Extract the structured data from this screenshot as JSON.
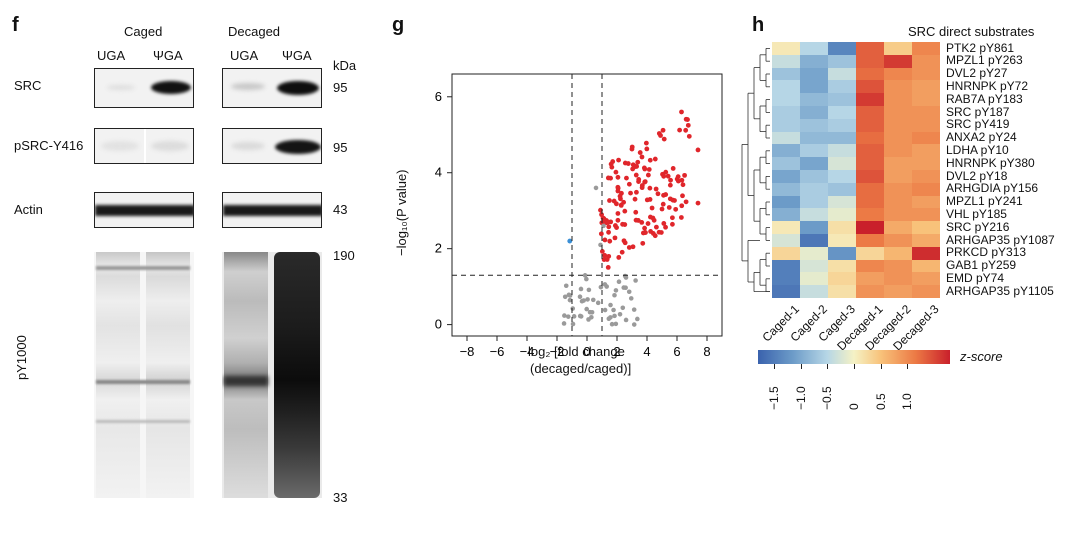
{
  "panel_f": {
    "label": "f",
    "group_left": "Caged",
    "group_right": "Decaged",
    "lane_labels": [
      "UGA",
      "ΨGA",
      "UGA",
      "ΨGA"
    ],
    "kda_header": "kDa",
    "rows": [
      {
        "name": "SRC",
        "kda": "95"
      },
      {
        "name": "pSRC-Y416",
        "kda": "95"
      },
      {
        "name": "Actin",
        "kda": "43"
      },
      {
        "name": "pY1000",
        "kda_top": "190",
        "kda_bottom": "33"
      }
    ]
  },
  "panel_g": {
    "label": "g",
    "chart_data": {
      "type": "scatter",
      "xlabel_line1": "log₂ [fold change",
      "xlabel_line2": "(decaged/caged)]",
      "ylabel": "−log₁₀(P value)",
      "xlim": [
        -9,
        9
      ],
      "ylim": [
        -0.3,
        6.6
      ],
      "xticks": [
        "−8",
        "−6",
        "−4",
        "−2",
        "0",
        "2",
        "4",
        "6",
        "8"
      ],
      "yticks": [
        "0",
        "2",
        "4",
        "6"
      ],
      "thresholds": {
        "x": [
          -1,
          1
        ],
        "y": 1.3
      },
      "colors": {
        "up": "#e0262b",
        "down": "#3a8fd6",
        "ns": "#9a9a9a"
      }
    }
  },
  "panel_h": {
    "label": "h",
    "title": "SRC direct substrates",
    "columns": [
      "Caged-1",
      "Caged-2",
      "Caged-3",
      "Decaged-1",
      "Decaged-2",
      "Decaged-3"
    ],
    "rows": [
      {
        "gene": "PTK2 pY861",
        "z": [
          0.1,
          -0.4,
          -1.3,
          1.3,
          0.4,
          1.0
        ]
      },
      {
        "gene": "MPZL1 pY263",
        "z": [
          -0.3,
          -0.8,
          -0.6,
          1.3,
          1.6,
          0.9
        ]
      },
      {
        "gene": "DVL2 pY27",
        "z": [
          -0.6,
          -0.9,
          -0.3,
          1.2,
          1.0,
          0.9
        ]
      },
      {
        "gene": "HNRNPK pY72",
        "z": [
          -0.4,
          -0.9,
          -0.5,
          1.4,
          0.9,
          0.8
        ]
      },
      {
        "gene": "RAB7A pY183",
        "z": [
          -0.4,
          -0.7,
          -0.6,
          1.6,
          0.9,
          0.8
        ]
      },
      {
        "gene": "SRC pY187",
        "z": [
          -0.5,
          -0.8,
          -0.4,
          1.3,
          0.9,
          0.9
        ]
      },
      {
        "gene": "SRC pY419",
        "z": [
          -0.5,
          -0.6,
          -0.5,
          1.3,
          0.9,
          0.9
        ]
      },
      {
        "gene": "ANXA2 pY24",
        "z": [
          -0.3,
          -0.7,
          -0.7,
          1.2,
          0.9,
          1.0
        ]
      },
      {
        "gene": "LDHA pY10",
        "z": [
          -0.8,
          -0.5,
          -0.3,
          1.3,
          0.9,
          0.8
        ]
      },
      {
        "gene": "HNRNPK pY380",
        "z": [
          -0.6,
          -0.9,
          -0.2,
          1.3,
          0.8,
          0.8
        ]
      },
      {
        "gene": "DVL2 pY18",
        "z": [
          -0.9,
          -0.6,
          -0.4,
          1.4,
          0.8,
          0.9
        ]
      },
      {
        "gene": "ARHGDIA pY156",
        "z": [
          -0.7,
          -0.5,
          -0.6,
          1.2,
          0.9,
          1.0
        ]
      },
      {
        "gene": "MPZL1 pY241",
        "z": [
          -1.0,
          -0.5,
          -0.2,
          1.2,
          0.9,
          0.8
        ]
      },
      {
        "gene": "VHL pY185",
        "z": [
          -0.8,
          -0.3,
          -0.1,
          1.1,
          0.9,
          0.9
        ]
      },
      {
        "gene": "SRC pY216",
        "z": [
          0.1,
          -1.0,
          0.2,
          1.8,
          0.7,
          0.5
        ]
      },
      {
        "gene": "ARHGAP35 pY1087",
        "z": [
          -0.2,
          -1.5,
          0.1,
          1.1,
          0.9,
          0.7
        ]
      },
      {
        "gene": "PRKCD pY313",
        "z": [
          0.3,
          -0.1,
          -1.1,
          0.3,
          0.6,
          1.7
        ]
      },
      {
        "gene": "GAB1 pY259",
        "z": [
          -1.4,
          -0.2,
          0.2,
          1.0,
          0.9,
          0.6
        ]
      },
      {
        "gene": "EMD pY74",
        "z": [
          -1.4,
          -0.1,
          0.3,
          0.8,
          0.9,
          0.8
        ]
      },
      {
        "gene": "ARHGAP35 pY1105",
        "z": [
          -1.5,
          -0.3,
          0.2,
          0.9,
          0.8,
          0.9
        ]
      }
    ],
    "colorbar": {
      "label": "z-score",
      "ticks": [
        "−1.5",
        "−1.0",
        "−0.5",
        "0",
        "0.5",
        "1.0"
      ],
      "tick_values": [
        -1.5,
        -1.0,
        -0.5,
        0,
        0.5,
        1.0
      ],
      "range": [
        -1.8,
        1.8
      ]
    }
  }
}
